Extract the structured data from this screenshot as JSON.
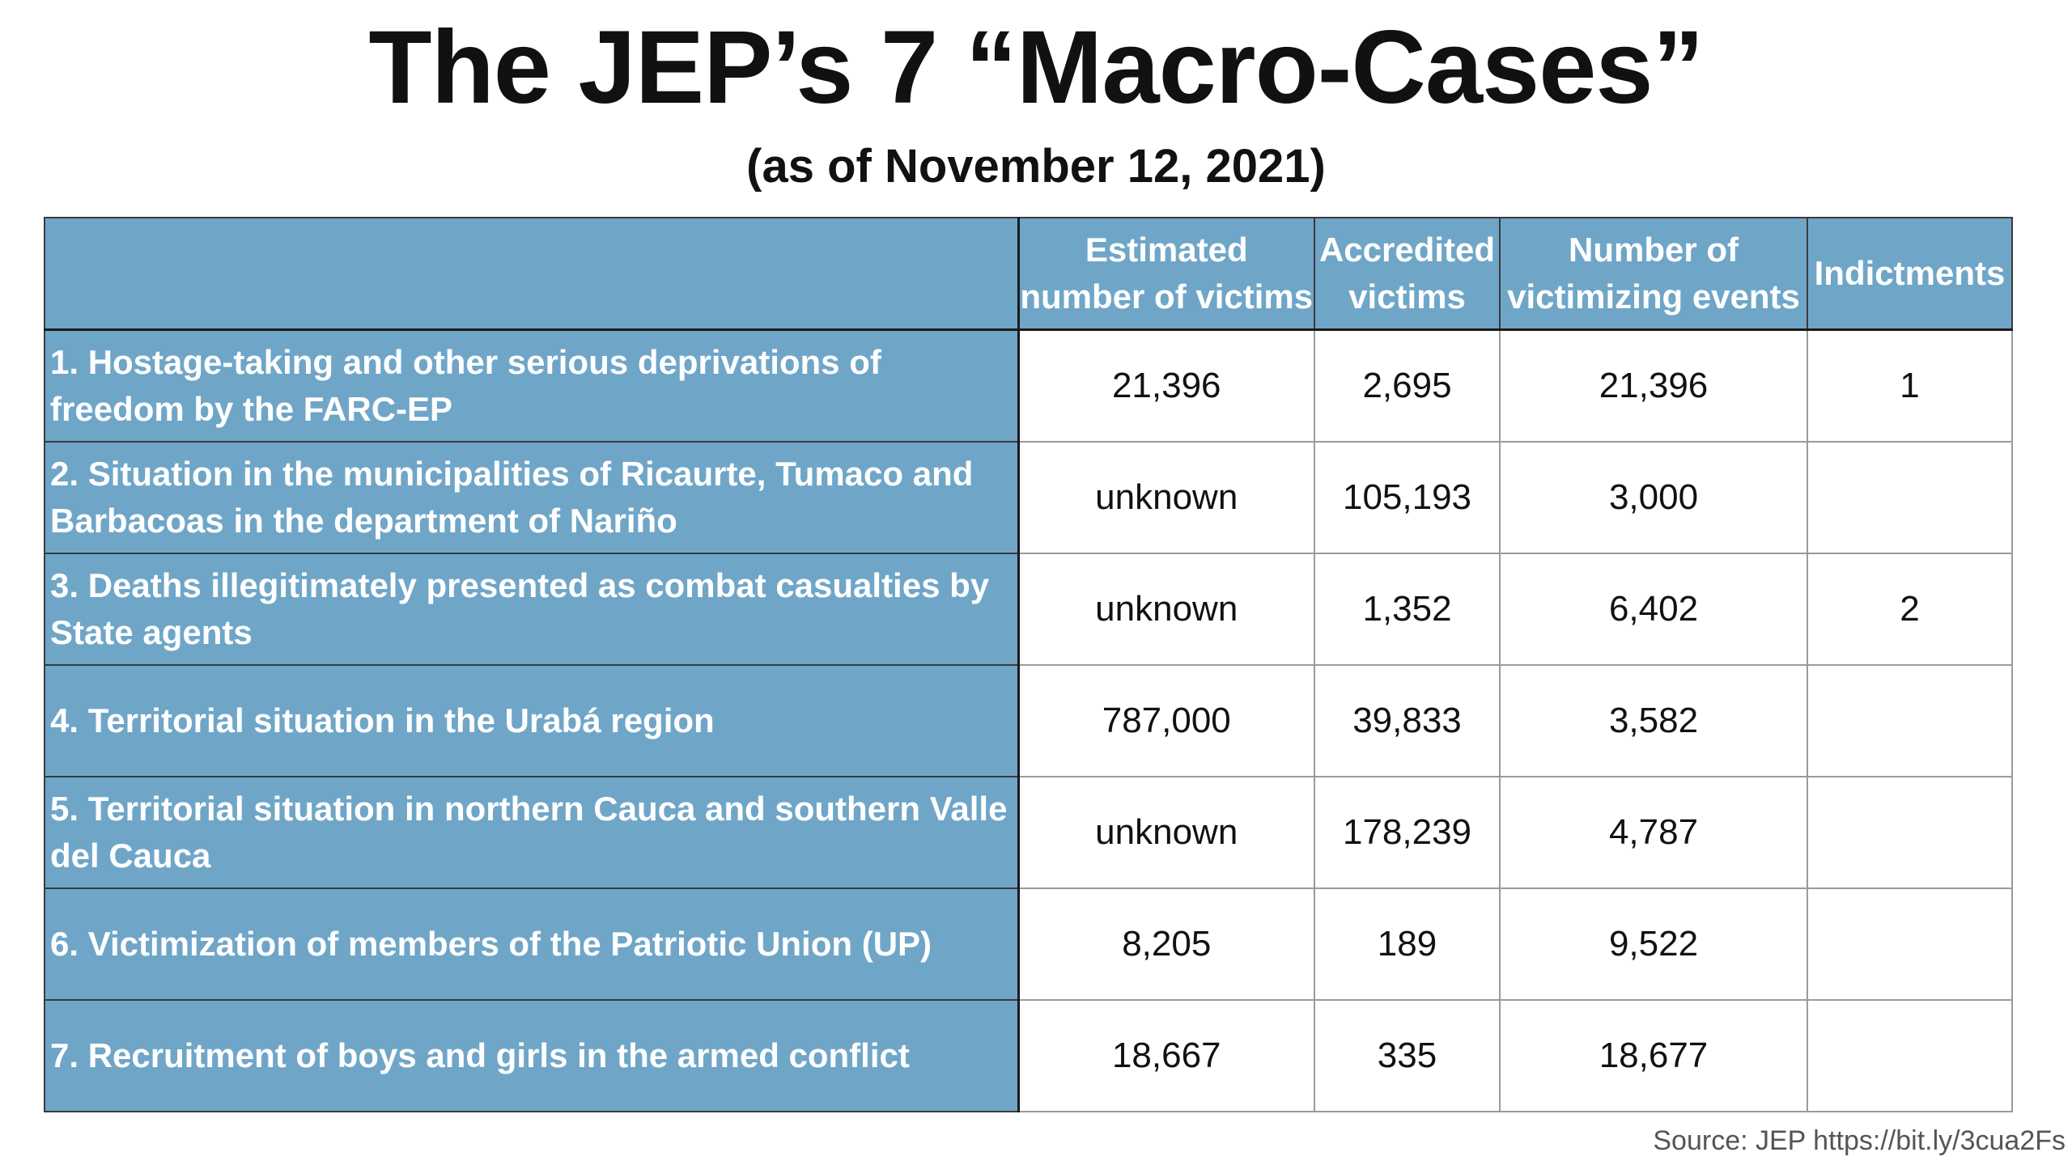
{
  "title": "The JEP’s 7 “Macro-Cases”",
  "subtitle": "(as of November 12, 2021)",
  "source": "Source: JEP https://bit.ly/3cua2Fs",
  "colors": {
    "header_fill": "#6fa6c8",
    "header_text": "#ffffff"
  },
  "chart_data": {
    "type": "table",
    "columns": [
      "",
      "Estimated number of victims",
      "Accredited victims",
      "Number of victimizing events",
      "Indictments"
    ],
    "rows": [
      {
        "case": "1. Hostage-taking and other serious deprivations of freedom by the FARC-EP",
        "estimated": "21,396",
        "accredited": "2,695",
        "events": "21,396",
        "indictments": "1"
      },
      {
        "case": "2. Situation in the municipalities of Ricaurte, Tumaco and Barbacoas in the department of Nariño",
        "estimated": "unknown",
        "accredited": "105,193",
        "events": "3,000",
        "indictments": ""
      },
      {
        "case": "3. Deaths illegitimately presented as combat casualties by State agents",
        "estimated": "unknown",
        "accredited": "1,352",
        "events": "6,402",
        "indictments": "2"
      },
      {
        "case": "4. Territorial situation in the Urabá region",
        "estimated": "787,000",
        "accredited": "39,833",
        "events": "3,582",
        "indictments": ""
      },
      {
        "case": "5. Territorial situation in northern Cauca and southern Valle del Cauca",
        "estimated": "unknown",
        "accredited": "178,239",
        "events": "4,787",
        "indictments": ""
      },
      {
        "case": "6. Victimization of members of the Patriotic Union (UP)",
        "estimated": "8,205",
        "accredited": "189",
        "events": "9,522",
        "indictments": ""
      },
      {
        "case": "7. Recruitment of boys and girls in the armed conflict",
        "estimated": "18,667",
        "accredited": "335",
        "events": "18,677",
        "indictments": ""
      }
    ]
  }
}
